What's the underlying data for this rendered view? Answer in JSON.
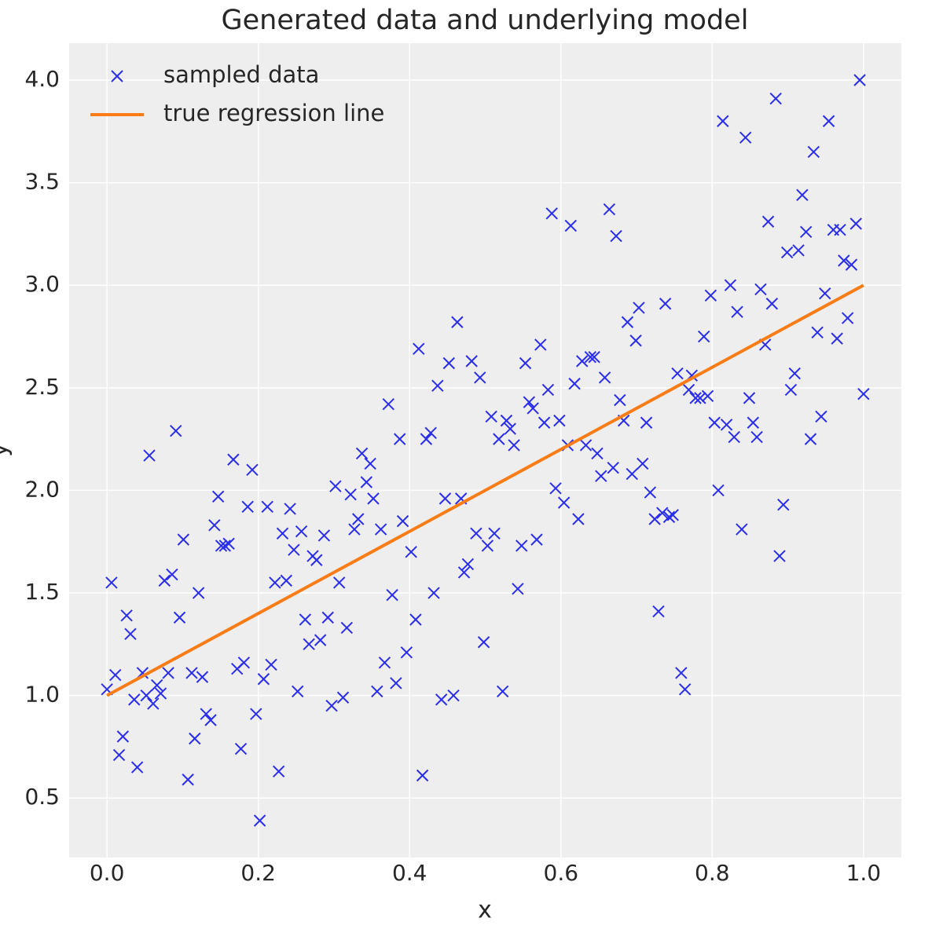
{
  "chart_data": {
    "type": "scatter",
    "title": "Generated data and underlying model",
    "xlabel": "x",
    "ylabel": "y",
    "xlim": [
      -0.05,
      1.05
    ],
    "ylim": [
      0.21,
      4.18
    ],
    "xticks": [
      {
        "value": 0,
        "label": "0.0"
      },
      0.2,
      0.4,
      0.6,
      0.8,
      {
        "value": 1,
        "label": "1.0"
      }
    ],
    "yticks": [
      0.5,
      {
        "value": 1,
        "label": "1.0"
      },
      1.5,
      {
        "value": 2,
        "label": "2.0"
      },
      2.5,
      {
        "value": 3,
        "label": "3.0"
      },
      3.5,
      {
        "value": 4,
        "label": "4.0"
      }
    ],
    "grid": true,
    "legend": "upper left",
    "series": [
      {
        "name": "sampled data",
        "type": "scatter",
        "marker": "x",
        "color": "#2a2eec",
        "x": [
          0.0,
          0.006,
          0.011,
          0.016,
          0.021,
          0.026,
          0.031,
          0.036,
          0.04,
          0.047,
          0.052,
          0.056,
          0.061,
          0.066,
          0.071,
          0.076,
          0.081,
          0.086,
          0.091,
          0.096,
          0.101,
          0.107,
          0.112,
          0.116,
          0.121,
          0.126,
          0.131,
          0.137,
          0.142,
          0.147,
          0.151,
          0.156,
          0.161,
          0.167,
          0.172,
          0.177,
          0.181,
          0.186,
          0.192,
          0.197,
          0.202,
          0.207,
          0.212,
          0.217,
          0.222,
          0.227,
          0.232,
          0.237,
          0.242,
          0.247,
          0.252,
          0.257,
          0.262,
          0.267,
          0.272,
          0.277,
          0.282,
          0.287,
          0.292,
          0.297,
          0.302,
          0.307,
          0.312,
          0.317,
          0.322,
          0.327,
          0.332,
          0.337,
          0.343,
          0.348,
          0.352,
          0.357,
          0.362,
          0.367,
          0.372,
          0.377,
          0.382,
          0.387,
          0.391,
          0.396,
          0.402,
          0.408,
          0.412,
          0.417,
          0.422,
          0.428,
          0.432,
          0.437,
          0.442,
          0.447,
          0.452,
          0.458,
          0.463,
          0.468,
          0.472,
          0.477,
          0.482,
          0.488,
          0.493,
          0.498,
          0.503,
          0.508,
          0.512,
          0.518,
          0.523,
          0.528,
          0.533,
          0.538,
          0.543,
          0.548,
          0.553,
          0.558,
          0.563,
          0.568,
          0.573,
          0.578,
          0.583,
          0.588,
          0.593,
          0.598,
          0.604,
          0.609,
          0.613,
          0.618,
          0.623,
          0.628,
          0.633,
          0.639,
          0.644,
          0.648,
          0.653,
          0.658,
          0.664,
          0.669,
          0.673,
          0.678,
          0.683,
          0.688,
          0.694,
          0.699,
          0.703,
          0.708,
          0.713,
          0.718,
          0.724,
          0.729,
          0.734,
          0.738,
          0.743,
          0.748,
          0.754,
          0.759,
          0.764,
          0.769,
          0.773,
          0.778,
          0.784,
          0.789,
          0.794,
          0.798,
          0.803,
          0.808,
          0.814,
          0.819,
          0.824,
          0.829,
          0.833,
          0.839,
          0.844,
          0.849,
          0.854,
          0.859,
          0.864,
          0.87,
          0.874,
          0.879,
          0.884,
          0.889,
          0.894,
          0.899,
          0.904,
          0.909,
          0.914,
          0.919,
          0.924,
          0.93,
          0.934,
          0.939,
          0.944,
          0.949,
          0.954,
          0.96,
          0.965,
          0.969,
          0.974,
          0.979,
          0.984,
          0.99,
          0.995,
          1.0
        ],
        "values": [
          1.03,
          1.55,
          1.1,
          0.71,
          0.8,
          1.39,
          1.3,
          0.98,
          0.65,
          1.11,
          1.0,
          2.17,
          0.96,
          1.05,
          1.01,
          1.56,
          1.11,
          1.59,
          2.29,
          1.38,
          1.76,
          0.59,
          1.11,
          0.79,
          1.5,
          1.09,
          0.91,
          0.88,
          1.83,
          1.97,
          1.73,
          1.73,
          1.74,
          2.15,
          1.13,
          0.74,
          1.16,
          1.92,
          2.1,
          0.91,
          0.39,
          1.08,
          1.92,
          1.15,
          1.55,
          0.63,
          1.79,
          1.56,
          1.91,
          1.71,
          1.02,
          1.8,
          1.37,
          1.25,
          1.68,
          1.66,
          1.27,
          1.78,
          1.38,
          0.95,
          2.02,
          1.55,
          0.99,
          1.33,
          1.98,
          1.81,
          1.86,
          2.18,
          2.04,
          2.13,
          1.96,
          1.02,
          1.81,
          1.16,
          2.42,
          1.49,
          1.06,
          2.25,
          1.85,
          1.21,
          1.7,
          1.37,
          2.69,
          0.61,
          2.25,
          2.28,
          1.5,
          2.51,
          0.98,
          1.96,
          2.62,
          1.0,
          2.82,
          1.96,
          1.6,
          1.64,
          2.63,
          1.79,
          2.55,
          1.26,
          1.73,
          2.36,
          1.79,
          2.25,
          1.02,
          2.34,
          2.3,
          2.22,
          1.52,
          1.73,
          2.62,
          2.43,
          2.4,
          1.76,
          2.71,
          2.33,
          2.49,
          3.35,
          2.01,
          2.34,
          1.94,
          2.22,
          3.29,
          2.52,
          1.86,
          2.63,
          2.22,
          2.65,
          2.65,
          2.18,
          2.07,
          2.55,
          3.37,
          2.11,
          3.24,
          2.44,
          2.34,
          2.82,
          2.08,
          2.73,
          2.89,
          2.13,
          2.33,
          1.99,
          1.86,
          1.41,
          1.89,
          2.91,
          1.87,
          1.88,
          2.57,
          1.11,
          1.03,
          2.49,
          2.56,
          2.45,
          2.45,
          2.75,
          2.46,
          2.95,
          2.33,
          2.0,
          3.8,
          2.32,
          3.0,
          2.26,
          2.87,
          1.81,
          3.72,
          2.45,
          2.33,
          2.26,
          2.98,
          2.71,
          3.31,
          2.91,
          3.91,
          1.68,
          1.93,
          3.16,
          2.49,
          2.57,
          3.17,
          3.44,
          3.26,
          2.25,
          3.65,
          2.77,
          2.36,
          2.96,
          3.8,
          3.27,
          2.74,
          3.27,
          3.12,
          2.84,
          3.1,
          3.3,
          4.0,
          2.47
        ]
      },
      {
        "name": "true regression line",
        "type": "line",
        "color": "#fa7c17",
        "x": [
          0,
          1
        ],
        "values": [
          1,
          3
        ]
      }
    ]
  }
}
